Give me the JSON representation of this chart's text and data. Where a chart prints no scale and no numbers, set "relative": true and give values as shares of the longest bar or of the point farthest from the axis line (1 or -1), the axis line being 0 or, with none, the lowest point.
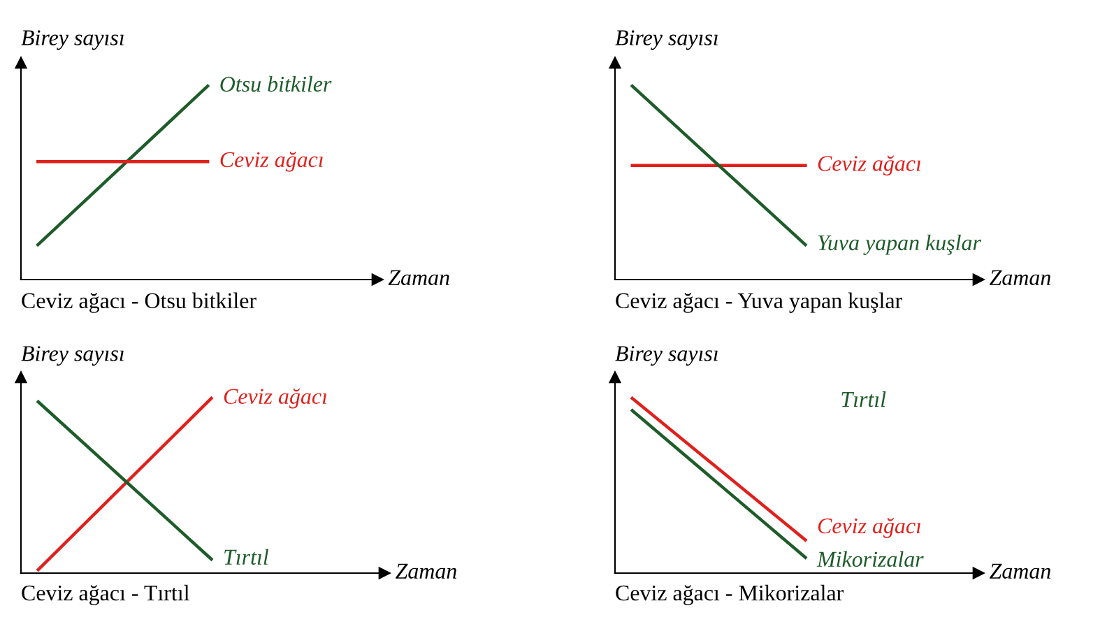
{
  "chart_data": [
    {
      "type": "line",
      "relative": true,
      "title": "Ceviz ağacı - Otsu bitkiler",
      "xlabel": "Zaman",
      "ylabel": "Birey sayısı",
      "categories": [
        null,
        null
      ],
      "legend": false,
      "series": [
        {
          "name": "Otsu bitkiler",
          "color": "#1e5c2a",
          "values": [
            0.18,
            1.0
          ]
        },
        {
          "name": "Ceviz ağacı",
          "color": "#e0201c",
          "values": [
            0.61,
            0.61
          ]
        }
      ]
    },
    {
      "type": "line",
      "relative": true,
      "title": "Ceviz ağacı - Yuva yapan kuşlar",
      "xlabel": "Zaman",
      "ylabel": "Birey sayısı",
      "categories": [
        null,
        null
      ],
      "legend": false,
      "series": [
        {
          "name": "Ceviz ağacı",
          "color": "#e0201c",
          "values": [
            0.59,
            0.59
          ]
        },
        {
          "name": "Yuva yapan kuşlar",
          "color": "#1e5c2a",
          "values": [
            1.0,
            0.18
          ]
        }
      ]
    },
    {
      "type": "line",
      "relative": true,
      "title": "Ceviz ağacı - Tırtıl",
      "xlabel": "Zaman",
      "ylabel": "Birey sayısı",
      "categories": [
        null,
        null
      ],
      "legend": false,
      "series": [
        {
          "name": "Ceviz ağacı",
          "color": "#e0201c",
          "values": [
            0.02,
            1.0
          ]
        },
        {
          "name": "Tırtıl",
          "color": "#1e5c2a",
          "values": [
            0.98,
            0.08
          ]
        }
      ]
    },
    {
      "type": "line",
      "relative": true,
      "title": "Ceviz ağacı - Mikorizalar",
      "xlabel": "Zaman",
      "ylabel": "Birey sayısı",
      "categories": [
        null,
        null
      ],
      "legend": false,
      "annotations": [
        "Tırtıl"
      ],
      "series": [
        {
          "name": "Ceviz ağacı",
          "color": "#e0201c",
          "values": [
            1.0,
            0.19
          ]
        },
        {
          "name": "Mikorizalar",
          "color": "#1e5c2a",
          "values": [
            0.93,
            0.09
          ]
        }
      ]
    }
  ]
}
